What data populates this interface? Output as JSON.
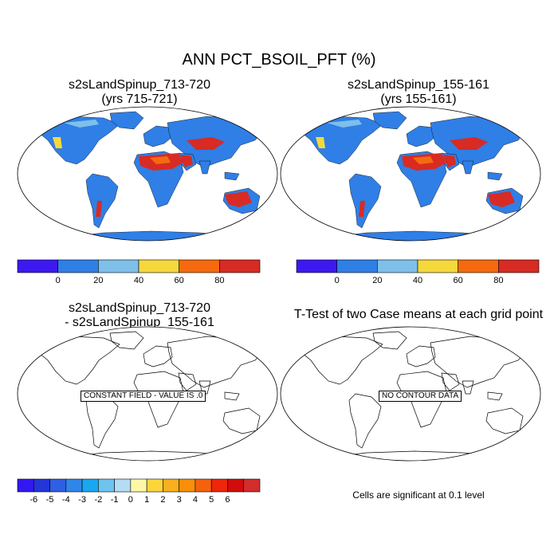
{
  "title": "ANN PCT_BSOIL_PFT (%)",
  "panels": {
    "top_left": {
      "line1": "s2sLandSpinup_713-720",
      "line2": "(yrs 715-721)"
    },
    "top_right": {
      "line1": "s2sLandSpinup_155-161",
      "line2": "(yrs 155-161)"
    },
    "bottom_left": {
      "line1": "s2sLandSpinup_713-720",
      "line2": "- s2sLandSpinup_155-161",
      "field_label": "CONSTANT FIELD - VALUE IS .0"
    },
    "bottom_right": {
      "line1": "T-Test of two Case means at each grid point",
      "field_label": "NO CONTOUR DATA",
      "note": "Cells are significant at 0.1 level"
    }
  },
  "colorbars": {
    "top": {
      "colors": [
        "#3d19f0",
        "#2f7fe6",
        "#7ec0ea",
        "#f5d93c",
        "#f56a0f",
        "#d72b24"
      ],
      "labels": [
        "0",
        "20",
        "40",
        "60",
        "80"
      ]
    },
    "bottom": {
      "colors": [
        "#3418f2",
        "#2435d9",
        "#2f5fe2",
        "#2f86e8",
        "#18a8f0",
        "#6ec4ef",
        "#b3dcf5",
        "#fff7a8",
        "#fcd53c",
        "#f9b01e",
        "#f88f09",
        "#f5620d",
        "#ee260b",
        "#d10d0c",
        "#d32d2d"
      ],
      "labels": [
        "-6",
        "-5",
        "-4",
        "-3",
        "-2",
        "-1",
        "0",
        "1",
        "2",
        "3",
        "4",
        "5",
        "6"
      ]
    }
  },
  "map_colors": {
    "ocean": "#ffffff",
    "land_low": "#2f7fe6",
    "land_mid": "#7ec0ea",
    "land_high": "#f56a0f",
    "land_max": "#d72b24",
    "land_yellow": "#f5d93c"
  }
}
